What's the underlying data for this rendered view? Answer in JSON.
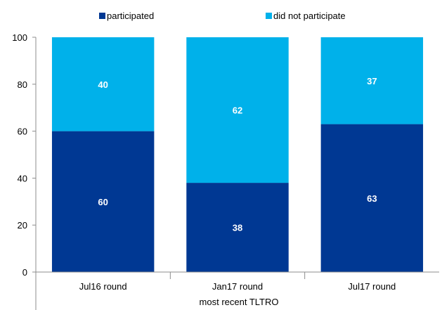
{
  "chart_data": {
    "type": "bar",
    "stacked": true,
    "categories": [
      "Jul16 round",
      "Jan17 round",
      "Jul17  round"
    ],
    "series": [
      {
        "name": "participated",
        "values": [
          60,
          38,
          63
        ],
        "color": "#003893"
      },
      {
        "name": "did not participate",
        "values": [
          40,
          62,
          37
        ],
        "color": "#00b1ea"
      }
    ],
    "xlabel": "most recent TLTRO",
    "ylabel": "",
    "ylim": [
      0,
      100
    ],
    "yticks": [
      0,
      20,
      40,
      60,
      80,
      100
    ],
    "grid": false,
    "legend_position": "top"
  }
}
